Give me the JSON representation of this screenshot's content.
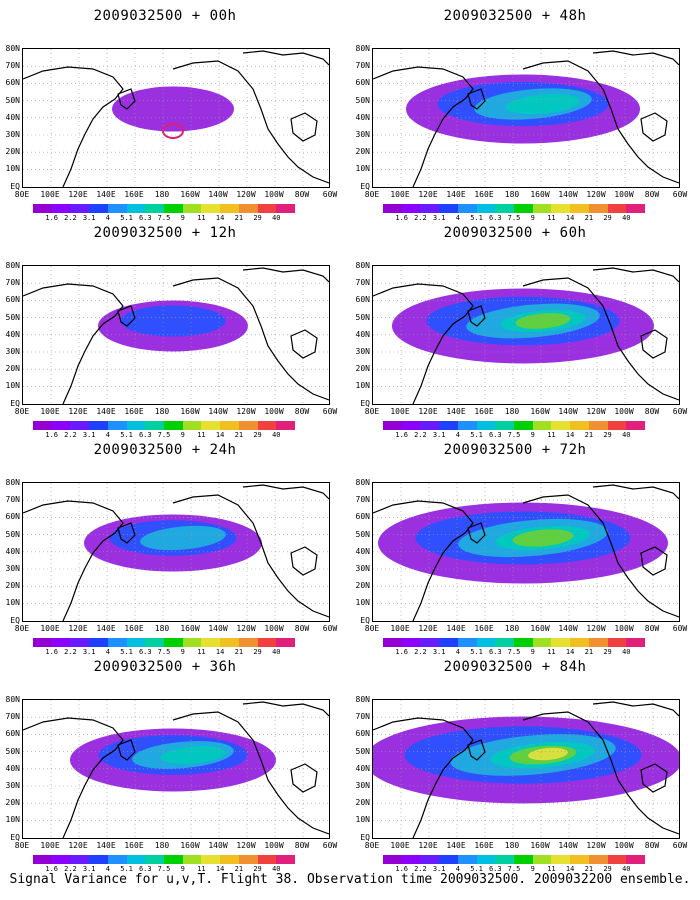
{
  "panels": [
    {
      "title": "2009032500 + 00h",
      "intensity": 0.15
    },
    {
      "title": "2009032500 + 48h",
      "intensity": 0.55
    },
    {
      "title": "2009032500 + 12h",
      "intensity": 0.25
    },
    {
      "title": "2009032500 + 60h",
      "intensity": 0.65
    },
    {
      "title": "2009032500 + 24h",
      "intensity": 0.35
    },
    {
      "title": "2009032500 + 72h",
      "intensity": 0.75
    },
    {
      "title": "2009032500 + 36h",
      "intensity": 0.45
    },
    {
      "title": "2009032500 + 84h",
      "intensity": 0.85
    }
  ],
  "lat_labels": [
    "80N",
    "70N",
    "60N",
    "50N",
    "40N",
    "30N",
    "20N",
    "10N",
    "EQ"
  ],
  "lon_labels": [
    "80E",
    "100E",
    "120E",
    "140E",
    "160E",
    "180",
    "160W",
    "140W",
    "120W",
    "100W",
    "80W",
    "60W"
  ],
  "colorbar": {
    "labels": [
      "1.6",
      "2.2",
      "3.1",
      "4",
      "5.1",
      "6.3",
      "7.5",
      "9",
      "11",
      "14",
      "21",
      "29",
      "40"
    ],
    "colors": [
      "#9400d3",
      "#8b00ff",
      "#6a1aff",
      "#2040ff",
      "#1e90ff",
      "#00c0e0",
      "#00d0a0",
      "#00d000",
      "#a0e020",
      "#e6e030",
      "#f0c020",
      "#f09030",
      "#f04040",
      "#e0207a"
    ]
  },
  "caption": "Signal Variance for u,v,T. Flight 38. Observation time 2009032500. 2009032200 ensemble."
}
